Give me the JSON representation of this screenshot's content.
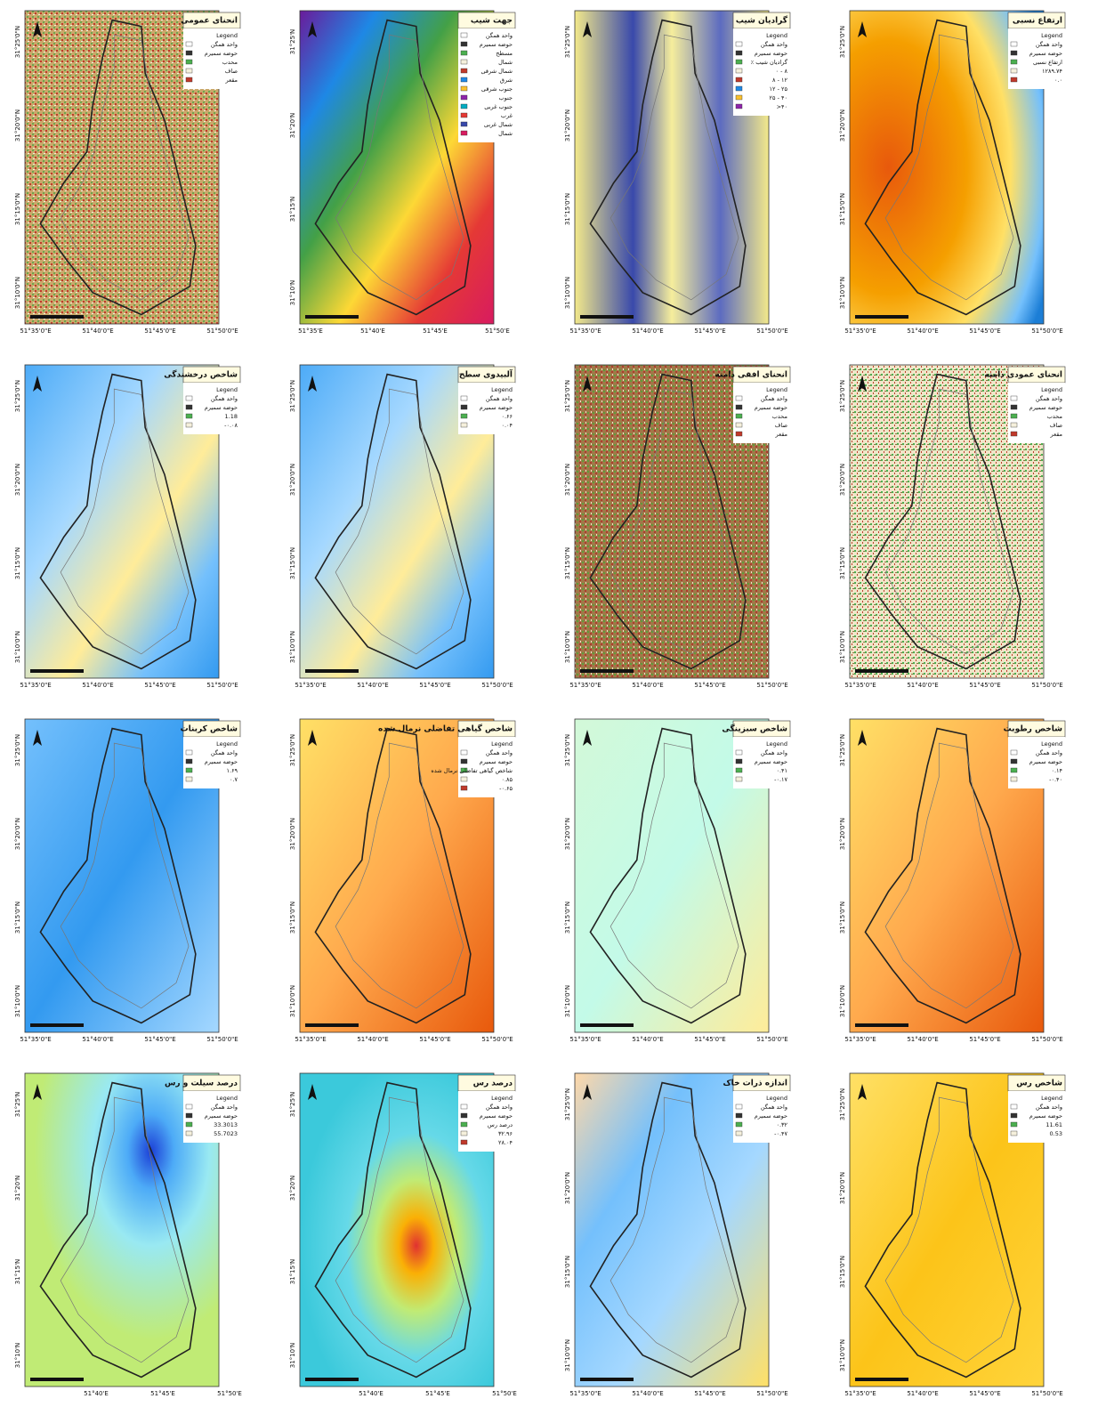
{
  "panels": [
    {
      "title": "انحنای عمومی",
      "legend_heading": "Legend",
      "legend_items": [
        "واحد همگن",
        "حوضه سمیرم",
        "محدب",
        "صاف",
        "مقعر"
      ],
      "lat_labels": [
        "31°25'0\"N",
        "31°20'0\"N",
        "31°15'0\"N",
        "31°10'0\"N"
      ],
      "lon_labels": [
        "51°35'0\"E",
        "51°40'0\"E",
        "51°45'0\"E",
        "51°50'0\"E"
      ]
    },
    {
      "title": "جهت شیب",
      "legend_items": [
        "واحد همگن",
        "حوضه سمیرم",
        "مسطح",
        "شمال",
        "شمال شرقی",
        "شرق",
        "جنوب شرقی",
        "جنوب",
        "جنوب غربی",
        "غرب",
        "شمال غربی",
        "شمال"
      ],
      "lat_labels": [
        "31°25'N",
        "31°20'N",
        "31°15'N",
        "31°10'N"
      ],
      "lon_labels": [
        "51°35'E",
        "51°40'E",
        "51°45'E",
        "51°50'E"
      ]
    },
    {
      "title": "گرادیان شیب",
      "legend_heading": "Legend",
      "legend_items": [
        "واحد همگن",
        "حوضه سمیرم",
        "٪ گرادیان شیب",
        "۰ - ۸",
        "۸ - ۱۲",
        "۱۲ - ۲۵",
        "۲۵ - ۴۰",
        ">۴۰"
      ],
      "lat_labels": [
        "31°25'0\"N",
        "31°20'0\"N",
        "31°15'0\"N",
        "31°10'0\"N"
      ],
      "lon_labels": [
        "51°35'0\"E",
        "51°40'0\"E",
        "51°45'0\"E",
        "51°50'0\"E"
      ]
    },
    {
      "title": "ارتفاع نسبی",
      "legend_heading": "Legend",
      "legend_items": [
        "واحد همگن",
        "حوضه سمیرم",
        "ارتفاع نسبی",
        "۱۲۸۹.۷۴",
        "۰.۰"
      ],
      "lat_labels": [
        "31°25'0\"N",
        "31°20'0\"N",
        "31°15'0\"N",
        "31°10'0\"N"
      ],
      "lon_labels": [
        "51°35'0\"E",
        "51°40'0\"E",
        "51°45'0\"E",
        "51°50'0\"E"
      ]
    },
    {
      "title": "شاخص درخشندگی",
      "legend_heading": "Legend",
      "legend_items": [
        "واحد همگن",
        "حوضه سمیرم",
        "1.18",
        "-۰.۰۸"
      ],
      "lat_labels": [
        "31°25'0\"N",
        "31°20'0\"N",
        "31°15'0\"N",
        "31°10'0\"N"
      ],
      "lon_labels": [
        "51°35'0\"E",
        "51°40'0\"E",
        "51°45'0\"E",
        "51°50'0\"E"
      ]
    },
    {
      "title": "آلبیدوی سطح",
      "legend_heading": "Legend",
      "legend_items": [
        "واحد همگن",
        "حوضه سمیرم",
        "۰.۶۶",
        "۰.۰۴"
      ],
      "lat_labels": [
        "31°25'0\"N",
        "31°20'0\"N",
        "31°15'0\"N",
        "31°10'0\"N"
      ],
      "lon_labels": [
        "51°35'0\"E",
        "51°40'0\"E",
        "51°45'0\"E",
        "51°50'0\"E"
      ]
    },
    {
      "title": "انحنای افقی دامنه",
      "legend_heading": "Legend",
      "legend_items": [
        "واحد همگن",
        "حوضه سمیرم",
        "محدب",
        "صاف",
        "مقعر"
      ],
      "lat_labels": [
        "31°25'0\"N",
        "31°20'0\"N",
        "31°15'0\"N",
        "31°10'0\"N"
      ],
      "lon_labels": [
        "51°35'0\"E",
        "51°40'0\"E",
        "51°45'0\"E",
        "51°50'0\"E"
      ]
    },
    {
      "title": "انحنای عمودی دامنه",
      "legend_heading": "Legend",
      "legend_items": [
        "واحد همگن",
        "حوضه سمیرم",
        "محدب",
        "صاف",
        "مقعر"
      ],
      "lat_labels": [
        "31°25'0\"N",
        "31°20'0\"N",
        "31°15'0\"N",
        "31°10'0\"N"
      ],
      "lon_labels": [
        "51°35'0\"E",
        "51°40'0\"E",
        "51°45'0\"E",
        "51°50'0\"E"
      ]
    },
    {
      "title": "شاخص کربنات",
      "legend_heading": "Legend",
      "legend_items": [
        "واحد همگن",
        "حوضه سمیرم",
        "۱.۶۹",
        "۰.۷"
      ],
      "lat_labels": [
        "31°25'0\"N",
        "31°20'0\"N",
        "31°15'0\"N",
        "31°10'0\"N"
      ],
      "lon_labels": [
        "51°35'0\"E",
        "51°40'0\"E",
        "51°45'0\"E",
        "51°50'0\"E"
      ]
    },
    {
      "title": "شاخص گیاهی تفاضلی نرمال شده",
      "legend_heading": "Legend",
      "legend_items": [
        "واحد همگن",
        "حوضه سمیرم",
        "شاخص گیاهی تفاضلی نرمال شده",
        "۰.۸۵",
        "-۰.۶۵"
      ],
      "lat_labels": [
        "31°25'0\"N",
        "31°20'0\"N",
        "31°15'0\"N",
        "31°10'0\"N"
      ],
      "lon_labels": [
        "51°35'0\"E",
        "51°40'0\"E",
        "51°45'0\"E",
        "51°50'0\"E"
      ]
    },
    {
      "title": "شاخص سبزینگی",
      "legend_heading": "Legend",
      "legend_items": [
        "واحد همگن",
        "حوضه سمیرم",
        "۰.۴۱",
        "-۰.۱۷"
      ],
      "lat_labels": [
        "31°25'0\"N",
        "31°20'0\"N",
        "31°15'0\"N",
        "31°10'0\"N"
      ],
      "lon_labels": [
        "51°35'0\"E",
        "51°40'0\"E",
        "51°45'0\"E",
        "51°50'0\"E"
      ]
    },
    {
      "title": "شاخص رطوبت",
      "legend_heading": "Legend",
      "legend_items": [
        "واحد همگن",
        "حوضه سمیرم",
        "۰.۱۴",
        "-۰.۴۰"
      ],
      "lat_labels": [
        "31°25'0\"N",
        "31°20'0\"N",
        "31°15'0\"N",
        "31°10'0\"N"
      ],
      "lon_labels": [
        "51°35'0\"E",
        "51°40'0\"E",
        "51°45'0\"E",
        "51°50'0\"E"
      ]
    },
    {
      "title": "درصد سیلت و رس",
      "legend_heading": "Legend",
      "legend_items": [
        "واحد همگن",
        "حوضه سمیرم",
        "33.3013",
        "55.7023"
      ],
      "lat_labels": [
        "31°25'N",
        "31°20'N",
        "31°15'N",
        "31°10'N"
      ],
      "lon_labels": [
        "51°40'E",
        "51°45'E",
        "51°50'E"
      ]
    },
    {
      "title": "درصد رس",
      "legend_heading": "Legend",
      "legend_items": [
        "واحد همگن",
        "حوضه سمیرم",
        "درصد رس",
        "۳۲.۹۶",
        "۲۸.۰۴"
      ],
      "lat_labels": [
        "31°25'N",
        "31°20'N",
        "31°15'N",
        "31°10'N"
      ],
      "lon_labels": [
        "51°40'E",
        "51°45'E",
        "51°50'E"
      ]
    },
    {
      "title": "اندازه ذرات خاک",
      "legend_heading": "Legend",
      "legend_items": [
        "واحد همگن",
        "حوضه سمیرم",
        "۰.۳۲",
        "-۰.۴۷"
      ],
      "lat_labels": [
        "31°25'0\"N",
        "31°20'0\"N",
        "31°15'0\"N",
        "31°10'0\"N"
      ],
      "lon_labels": [
        "51°35'0\"E",
        "51°40'0\"E",
        "51°45'0\"E",
        "51°50'0\"E"
      ]
    },
    {
      "title": "شاخص رس",
      "legend_heading": "Legend",
      "legend_items": [
        "واحد همگن",
        "حوضه سمیرم",
        "11.61",
        "0.53"
      ],
      "lat_labels": [
        "31°25'0\"N",
        "31°20'0\"N",
        "31°15'0\"N",
        "31°10'0\"N"
      ],
      "lon_labels": [
        "51°35'0\"E",
        "51°40'0\"E",
        "51°45'0\"E",
        "51°50'0\"E"
      ]
    }
  ]
}
